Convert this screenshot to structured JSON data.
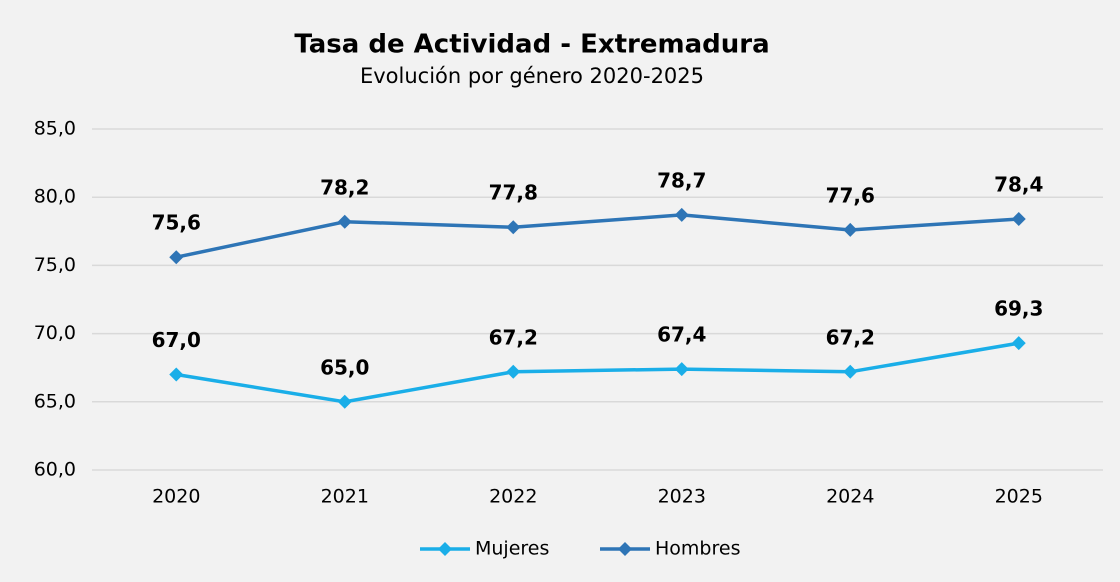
{
  "chart_data": {
    "type": "line",
    "title": "Tasa de Actividad - Extremadura",
    "subtitle": "Evolución por género 2020-2025",
    "categories": [
      "2020",
      "2021",
      "2022",
      "2023",
      "2024",
      "2025"
    ],
    "series": [
      {
        "name": "Mujeres",
        "color": "#1aaee8",
        "values": [
          67.0,
          65.0,
          67.2,
          67.4,
          67.2,
          69.3
        ],
        "value_labels": [
          "67,0",
          "65,0",
          "67,2",
          "67,4",
          "67,2",
          "69,3"
        ]
      },
      {
        "name": "Hombres",
        "color": "#2e75b6",
        "values": [
          75.6,
          78.2,
          77.8,
          78.7,
          77.6,
          78.4
        ],
        "value_labels": [
          "75,6",
          "78,2",
          "77,8",
          "78,7",
          "77,6",
          "78,4"
        ]
      }
    ],
    "ylim": [
      60,
      85
    ],
    "yticks": [
      {
        "value": 60,
        "label": "60,0"
      },
      {
        "value": 65,
        "label": "65,0"
      },
      {
        "value": 70,
        "label": "70,0"
      },
      {
        "value": 75,
        "label": "75,0"
      },
      {
        "value": 80,
        "label": "80,0"
      },
      {
        "value": 85,
        "label": "85,0"
      }
    ],
    "grid": true,
    "legend": "bottom"
  }
}
